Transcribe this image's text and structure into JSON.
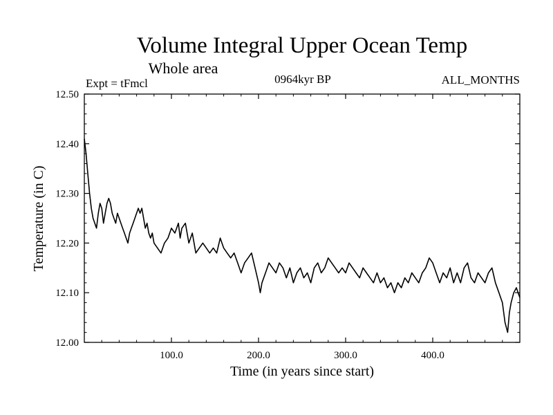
{
  "chart_data": {
    "type": "line",
    "title": "Volume Integral Upper Ocean Temp",
    "subtitle": "Whole area",
    "annotations": {
      "left": "Expt = tFmcl",
      "center": "0964kyr BP",
      "right": "ALL_MONTHS"
    },
    "xlabel": "Time (in years since start)",
    "ylabel": "Temperature (in C)",
    "xlim": [
      0,
      500
    ],
    "ylim": [
      12.0,
      12.5
    ],
    "xticks": [
      100,
      200,
      300,
      400
    ],
    "xtick_labels": [
      "100.0",
      "200.0",
      "300.0",
      "400.0"
    ],
    "yticks": [
      12.0,
      12.1,
      12.2,
      12.3,
      12.4,
      12.5
    ],
    "ytick_labels": [
      "12.00",
      "12.10",
      "12.20",
      "12.30",
      "12.40",
      "12.50"
    ],
    "grid": false,
    "series": [
      {
        "name": "Volume Integral Upper Ocean Temp",
        "color": "#000000",
        "x": [
          0,
          2,
          4,
          6,
          8,
          10,
          12,
          14,
          16,
          18,
          20,
          22,
          24,
          26,
          28,
          30,
          32,
          34,
          36,
          38,
          40,
          42,
          44,
          46,
          48,
          50,
          52,
          54,
          56,
          58,
          60,
          62,
          64,
          66,
          68,
          70,
          72,
          74,
          76,
          78,
          80,
          84,
          88,
          90,
          92,
          96,
          100,
          104,
          108,
          110,
          112,
          116,
          120,
          124,
          128,
          132,
          136,
          140,
          144,
          148,
          152,
          156,
          160,
          164,
          168,
          172,
          176,
          180,
          184,
          188,
          192,
          196,
          200,
          202,
          204,
          208,
          212,
          216,
          220,
          224,
          228,
          232,
          236,
          240,
          244,
          248,
          252,
          256,
          260,
          264,
          268,
          272,
          276,
          280,
          284,
          288,
          292,
          296,
          300,
          304,
          308,
          312,
          316,
          320,
          324,
          328,
          332,
          336,
          340,
          344,
          348,
          352,
          356,
          360,
          364,
          368,
          372,
          376,
          380,
          384,
          388,
          392,
          396,
          400,
          404,
          408,
          412,
          416,
          420,
          424,
          428,
          432,
          436,
          440,
          444,
          448,
          452,
          456,
          460,
          464,
          468,
          472,
          476,
          480,
          483,
          486,
          488,
          490,
          493,
          496,
          500
        ],
        "values": [
          12.41,
          12.38,
          12.34,
          12.3,
          12.27,
          12.25,
          12.24,
          12.23,
          12.26,
          12.28,
          12.27,
          12.24,
          12.26,
          12.28,
          12.29,
          12.28,
          12.26,
          12.25,
          12.24,
          12.26,
          12.25,
          12.24,
          12.23,
          12.22,
          12.21,
          12.2,
          12.22,
          12.23,
          12.24,
          12.25,
          12.26,
          12.27,
          12.26,
          12.27,
          12.25,
          12.23,
          12.24,
          12.22,
          12.21,
          12.22,
          12.2,
          12.19,
          12.18,
          12.19,
          12.2,
          12.21,
          12.23,
          12.22,
          12.24,
          12.21,
          12.23,
          12.24,
          12.2,
          12.22,
          12.18,
          12.19,
          12.2,
          12.19,
          12.18,
          12.19,
          12.18,
          12.21,
          12.19,
          12.18,
          12.17,
          12.18,
          12.16,
          12.14,
          12.16,
          12.17,
          12.18,
          12.15,
          12.12,
          12.1,
          12.12,
          12.14,
          12.16,
          12.15,
          12.14,
          12.16,
          12.15,
          12.13,
          12.15,
          12.12,
          12.14,
          12.15,
          12.13,
          12.14,
          12.12,
          12.15,
          12.16,
          12.14,
          12.15,
          12.17,
          12.16,
          12.15,
          12.14,
          12.15,
          12.14,
          12.16,
          12.15,
          12.14,
          12.13,
          12.15,
          12.14,
          12.13,
          12.12,
          12.14,
          12.12,
          12.13,
          12.11,
          12.12,
          12.1,
          12.12,
          12.11,
          12.13,
          12.12,
          12.14,
          12.13,
          12.12,
          12.14,
          12.15,
          12.17,
          12.16,
          12.14,
          12.12,
          12.14,
          12.13,
          12.15,
          12.12,
          12.14,
          12.12,
          12.15,
          12.16,
          12.13,
          12.12,
          12.14,
          12.13,
          12.12,
          12.14,
          12.15,
          12.12,
          12.1,
          12.08,
          12.04,
          12.02,
          12.06,
          12.08,
          12.1,
          12.11,
          12.09
        ]
      }
    ]
  }
}
